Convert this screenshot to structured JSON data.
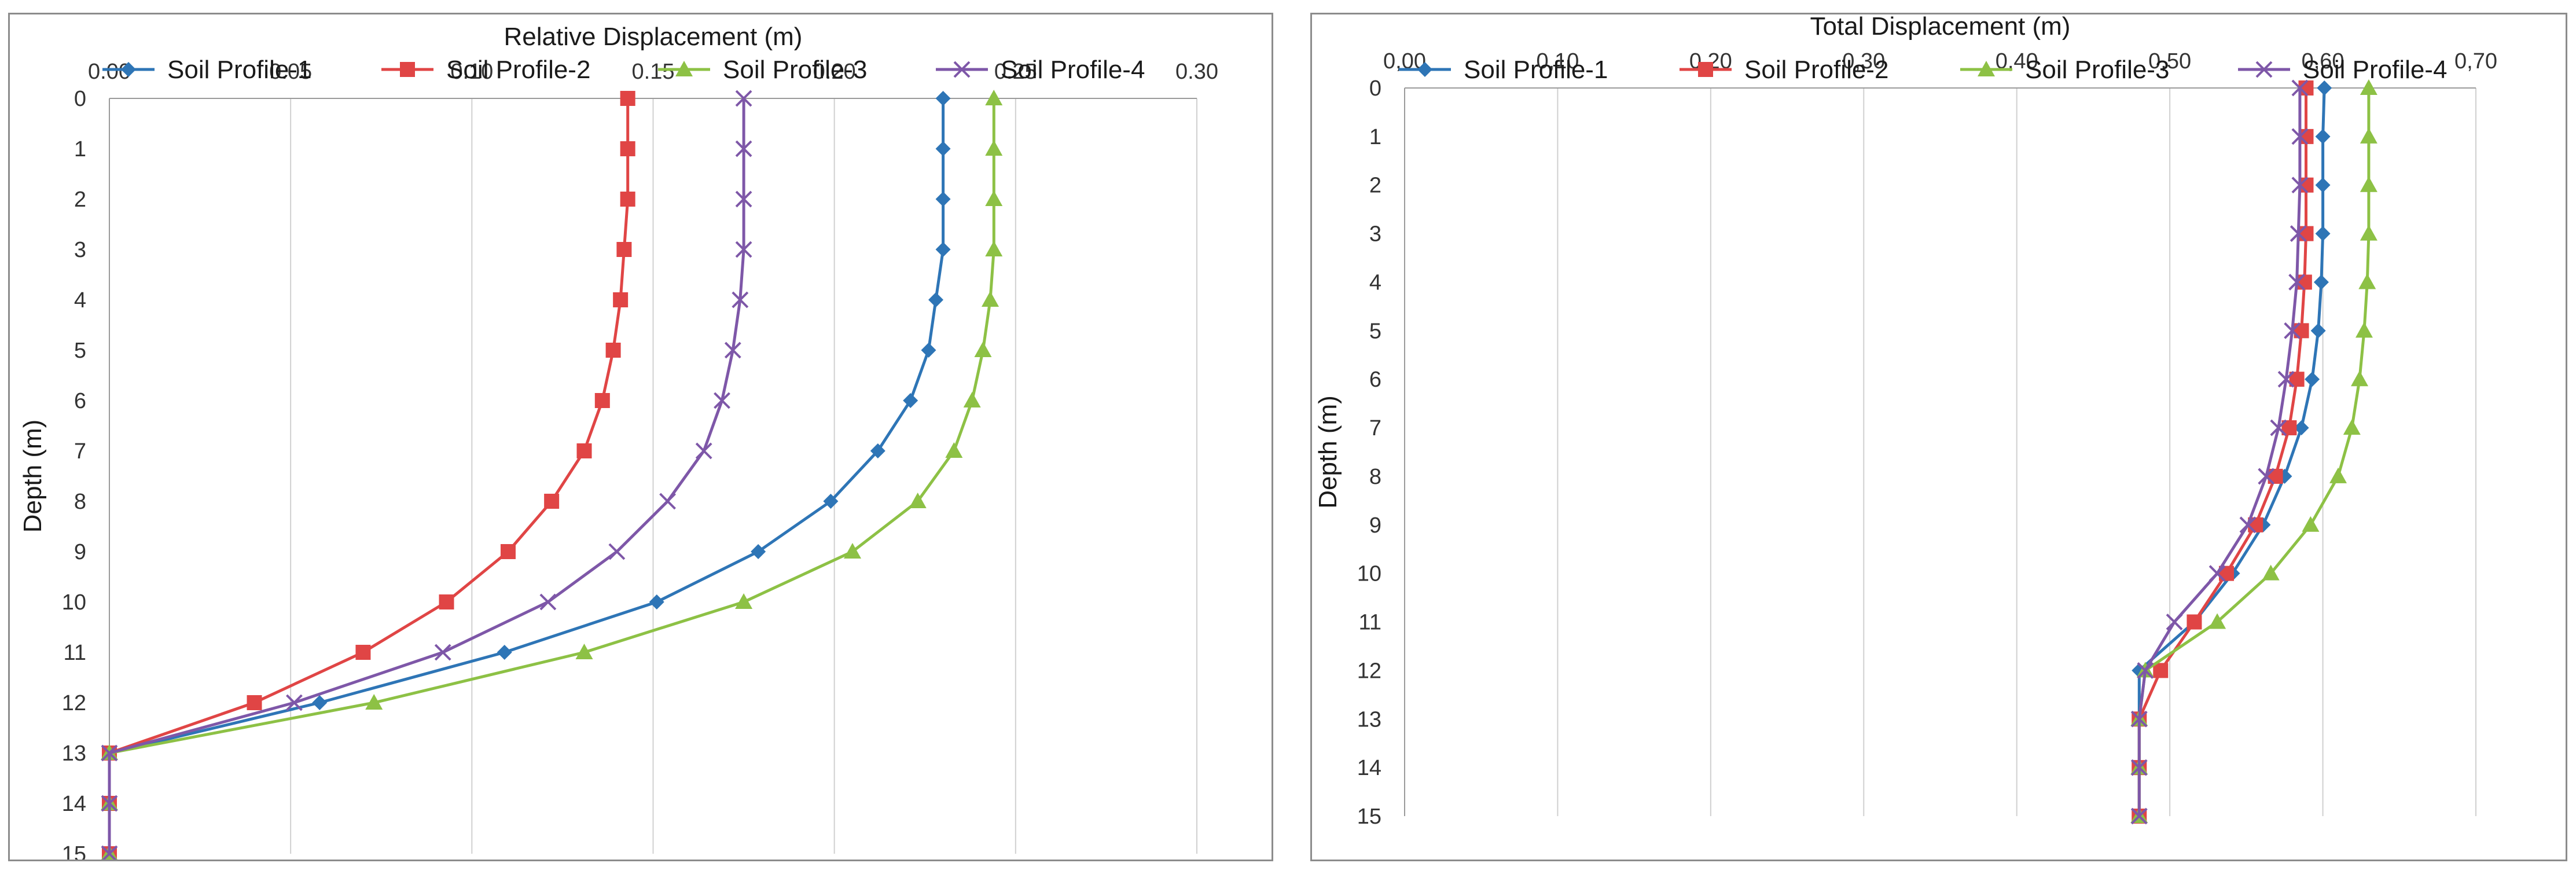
{
  "chart_data": [
    {
      "type": "line",
      "title": "",
      "xlabel": "Relative Displacement (m)",
      "ylabel": "Depth (m)",
      "xlim": [
        0,
        0.3
      ],
      "ylim": [
        0,
        15
      ],
      "x_ticks": [
        "0.00",
        "0.05",
        "0.10",
        "0.15",
        "0.20",
        "0.25",
        "0.30"
      ],
      "y_ticks": [
        "0",
        "1",
        "2",
        "3",
        "4",
        "5",
        "6",
        "7",
        "8",
        "9",
        "10",
        "11",
        "12",
        "13",
        "14",
        "15"
      ],
      "depth": [
        0,
        1,
        2,
        3,
        4,
        5,
        6,
        7,
        8,
        9,
        10,
        11,
        12,
        13,
        14,
        15
      ],
      "grid": true,
      "legend_position": "top",
      "series": [
        {
          "name": "Soil Profile-1",
          "color": "#2E75B6",
          "marker": "diamond",
          "values": [
            0.23,
            0.23,
            0.23,
            0.23,
            0.228,
            0.226,
            0.221,
            0.212,
            0.199,
            0.179,
            0.151,
            0.109,
            0.058,
            0,
            0,
            0
          ]
        },
        {
          "name": "Soil Profile-2",
          "color": "#E04545",
          "marker": "square",
          "values": [
            0.143,
            0.143,
            0.143,
            0.142,
            0.141,
            0.139,
            0.136,
            0.131,
            0.122,
            0.11,
            0.093,
            0.07,
            0.04,
            0,
            0,
            0
          ]
        },
        {
          "name": "Soil Profile-3",
          "color": "#8DC145",
          "marker": "triangle",
          "values": [
            0.244,
            0.244,
            0.244,
            0.244,
            0.243,
            0.241,
            0.238,
            0.233,
            0.223,
            0.205,
            0.175,
            0.131,
            0.073,
            0,
            0,
            0
          ]
        },
        {
          "name": "Soil Profile-4",
          "color": "#7E57A8",
          "marker": "x",
          "values": [
            0.175,
            0.175,
            0.175,
            0.175,
            0.174,
            0.172,
            0.169,
            0.164,
            0.154,
            0.14,
            0.121,
            0.092,
            0.051,
            0,
            0,
            0
          ]
        }
      ]
    },
    {
      "type": "line",
      "title": "",
      "xlabel": "Total Displacement (m)",
      "ylabel": "Depth (m)",
      "xlim": [
        0,
        0.7
      ],
      "ylim": [
        0,
        15
      ],
      "x_ticks": [
        "0,00",
        "0,10",
        "0,20",
        "0,30",
        "0,40",
        "0,50",
        "0,60",
        "0,70"
      ],
      "y_ticks": [
        "0",
        "1",
        "2",
        "3",
        "4",
        "5",
        "6",
        "7",
        "8",
        "9",
        "10",
        "11",
        "12",
        "13",
        "14",
        "15"
      ],
      "depth": [
        0,
        1,
        2,
        3,
        4,
        5,
        6,
        7,
        8,
        9,
        10,
        11,
        12,
        13,
        14,
        15
      ],
      "grid": true,
      "legend_position": "top",
      "series": [
        {
          "name": "Soil Profile-1",
          "color": "#2E75B6",
          "marker": "diamond",
          "values": [
            0.601,
            0.6,
            0.6,
            0.6,
            0.599,
            0.597,
            0.593,
            0.586,
            0.575,
            0.561,
            0.541,
            0.516,
            0.48,
            0.48,
            0.48,
            0.48
          ]
        },
        {
          "name": "Soil Profile-2",
          "color": "#E04545",
          "marker": "square",
          "values": [
            0.589,
            0.589,
            0.589,
            0.589,
            0.588,
            0.586,
            0.583,
            0.578,
            0.569,
            0.556,
            0.537,
            0.516,
            0.494,
            0.48,
            0.48,
            0.48
          ]
        },
        {
          "name": "Soil Profile-3",
          "color": "#8DC145",
          "marker": "triangle",
          "values": [
            0.63,
            0.63,
            0.63,
            0.63,
            0.629,
            0.627,
            0.624,
            0.619,
            0.61,
            0.592,
            0.566,
            0.531,
            0.484,
            0.48,
            0.48,
            0.48
          ]
        },
        {
          "name": "Soil Profile-4",
          "color": "#7E57A8",
          "marker": "x",
          "values": [
            0.585,
            0.585,
            0.585,
            0.584,
            0.583,
            0.58,
            0.576,
            0.571,
            0.563,
            0.551,
            0.531,
            0.503,
            0.484,
            0.48,
            0.48,
            0.48
          ]
        }
      ]
    }
  ]
}
